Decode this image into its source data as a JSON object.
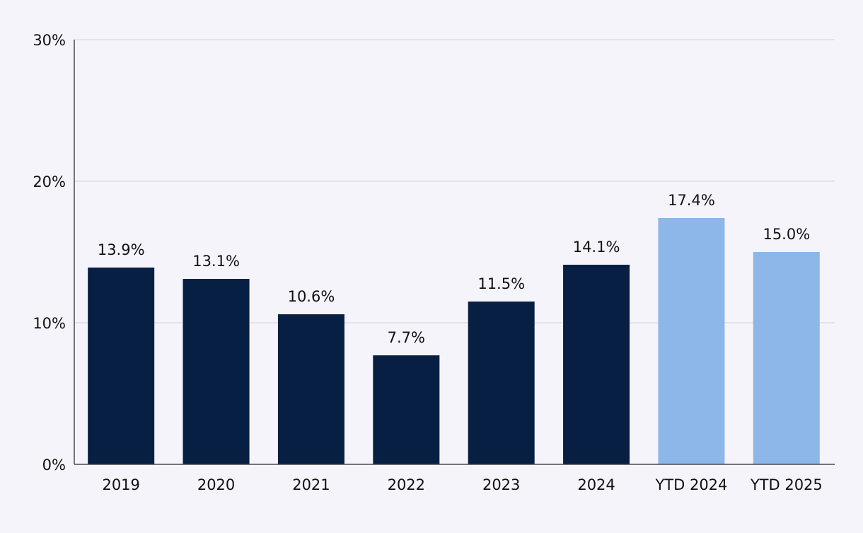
{
  "chart_data": {
    "type": "bar",
    "title": "",
    "xlabel": "",
    "ylabel": "",
    "categories": [
      "2019",
      "2020",
      "2021",
      "2022",
      "2023",
      "2024",
      "YTD 2024",
      "YTD 2025"
    ],
    "values": [
      13.9,
      13.1,
      10.6,
      7.7,
      11.5,
      14.1,
      17.4,
      15.0
    ],
    "data_labels": [
      "13.9%",
      "13.1%",
      "10.6%",
      "7.7%",
      "11.5%",
      "14.1%",
      "17.4%",
      "15.0%"
    ],
    "bar_colors": [
      "#061f42",
      "#061f42",
      "#061f42",
      "#061f42",
      "#061f42",
      "#061f42",
      "#8db7e8",
      "#8db7e8"
    ],
    "ylim": [
      0,
      30
    ],
    "yticks": [
      0,
      10,
      20,
      30
    ],
    "ytick_labels": [
      "0%",
      "10%",
      "20%",
      "30%"
    ],
    "grid": true,
    "legend": "none"
  },
  "colors": {
    "background": "#f5f4fa",
    "gridline": "#d9d8e2",
    "axis": "#4a4a4a",
    "dark_bar": "#061f42",
    "light_bar": "#8db7e8"
  }
}
